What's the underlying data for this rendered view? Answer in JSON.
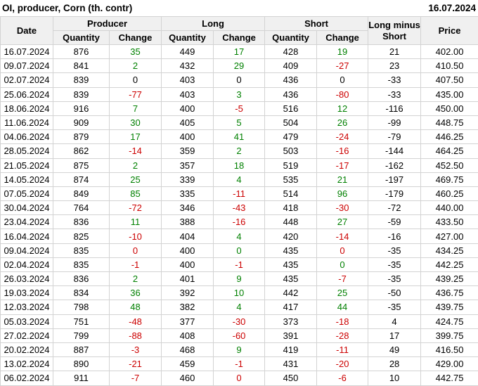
{
  "header": {
    "title": "OI, producer, Corn (th. contr)",
    "report_date": "16.07.2024"
  },
  "colors": {
    "positive": "#008000",
    "negative": "#cc0000",
    "neutral": "#000000",
    "header_bg": "#f0f0f0",
    "border": "#d3d3d3"
  },
  "table": {
    "group_headers": {
      "date": "Date",
      "producer": "Producer",
      "long": "Long",
      "short": "Short",
      "long_minus_short": "Long minus Short",
      "price": "Price"
    },
    "sub_headers": {
      "quantity": "Quantity",
      "change": "Change"
    },
    "rows": [
      {
        "date": "16.07.2024",
        "producer_qty": "876",
        "producer_chg": "35",
        "producer_chg_color": "positive",
        "long_qty": "449",
        "long_chg": "17",
        "long_chg_color": "positive",
        "short_qty": "428",
        "short_chg": "19",
        "short_chg_color": "positive",
        "long_minus_short": "21",
        "price": "402.00"
      },
      {
        "date": "09.07.2024",
        "producer_qty": "841",
        "producer_chg": "2",
        "producer_chg_color": "positive",
        "long_qty": "432",
        "long_chg": "29",
        "long_chg_color": "positive",
        "short_qty": "409",
        "short_chg": "-27",
        "short_chg_color": "negative",
        "long_minus_short": "23",
        "price": "410.50"
      },
      {
        "date": "02.07.2024",
        "producer_qty": "839",
        "producer_chg": "0",
        "producer_chg_color": "neutral",
        "long_qty": "403",
        "long_chg": "0",
        "long_chg_color": "neutral",
        "short_qty": "436",
        "short_chg": "0",
        "short_chg_color": "neutral",
        "long_minus_short": "-33",
        "price": "407.50"
      },
      {
        "date": "25.06.2024",
        "producer_qty": "839",
        "producer_chg": "-77",
        "producer_chg_color": "negative",
        "long_qty": "403",
        "long_chg": "3",
        "long_chg_color": "positive",
        "short_qty": "436",
        "short_chg": "-80",
        "short_chg_color": "negative",
        "long_minus_short": "-33",
        "price": "435.00"
      },
      {
        "date": "18.06.2024",
        "producer_qty": "916",
        "producer_chg": "7",
        "producer_chg_color": "positive",
        "long_qty": "400",
        "long_chg": "-5",
        "long_chg_color": "negative",
        "short_qty": "516",
        "short_chg": "12",
        "short_chg_color": "positive",
        "long_minus_short": "-116",
        "price": "450.00"
      },
      {
        "date": "11.06.2024",
        "producer_qty": "909",
        "producer_chg": "30",
        "producer_chg_color": "positive",
        "long_qty": "405",
        "long_chg": "5",
        "long_chg_color": "positive",
        "short_qty": "504",
        "short_chg": "26",
        "short_chg_color": "positive",
        "long_minus_short": "-99",
        "price": "448.75"
      },
      {
        "date": "04.06.2024",
        "producer_qty": "879",
        "producer_chg": "17",
        "producer_chg_color": "positive",
        "long_qty": "400",
        "long_chg": "41",
        "long_chg_color": "positive",
        "short_qty": "479",
        "short_chg": "-24",
        "short_chg_color": "negative",
        "long_minus_short": "-79",
        "price": "446.25"
      },
      {
        "date": "28.05.2024",
        "producer_qty": "862",
        "producer_chg": "-14",
        "producer_chg_color": "negative",
        "long_qty": "359",
        "long_chg": "2",
        "long_chg_color": "positive",
        "short_qty": "503",
        "short_chg": "-16",
        "short_chg_color": "negative",
        "long_minus_short": "-144",
        "price": "464.25"
      },
      {
        "date": "21.05.2024",
        "producer_qty": "875",
        "producer_chg": "2",
        "producer_chg_color": "positive",
        "long_qty": "357",
        "long_chg": "18",
        "long_chg_color": "positive",
        "short_qty": "519",
        "short_chg": "-17",
        "short_chg_color": "negative",
        "long_minus_short": "-162",
        "price": "452.50"
      },
      {
        "date": "14.05.2024",
        "producer_qty": "874",
        "producer_chg": "25",
        "producer_chg_color": "positive",
        "long_qty": "339",
        "long_chg": "4",
        "long_chg_color": "positive",
        "short_qty": "535",
        "short_chg": "21",
        "short_chg_color": "positive",
        "long_minus_short": "-197",
        "price": "469.75"
      },
      {
        "date": "07.05.2024",
        "producer_qty": "849",
        "producer_chg": "85",
        "producer_chg_color": "positive",
        "long_qty": "335",
        "long_chg": "-11",
        "long_chg_color": "negative",
        "short_qty": "514",
        "short_chg": "96",
        "short_chg_color": "positive",
        "long_minus_short": "-179",
        "price": "460.25"
      },
      {
        "date": "30.04.2024",
        "producer_qty": "764",
        "producer_chg": "-72",
        "producer_chg_color": "negative",
        "long_qty": "346",
        "long_chg": "-43",
        "long_chg_color": "negative",
        "short_qty": "418",
        "short_chg": "-30",
        "short_chg_color": "negative",
        "long_minus_short": "-72",
        "price": "440.00"
      },
      {
        "date": "23.04.2024",
        "producer_qty": "836",
        "producer_chg": "11",
        "producer_chg_color": "positive",
        "long_qty": "388",
        "long_chg": "-16",
        "long_chg_color": "negative",
        "short_qty": "448",
        "short_chg": "27",
        "short_chg_color": "positive",
        "long_minus_short": "-59",
        "price": "433.50"
      },
      {
        "date": "16.04.2024",
        "producer_qty": "825",
        "producer_chg": "-10",
        "producer_chg_color": "negative",
        "long_qty": "404",
        "long_chg": "4",
        "long_chg_color": "positive",
        "short_qty": "420",
        "short_chg": "-14",
        "short_chg_color": "negative",
        "long_minus_short": "-16",
        "price": "427.00"
      },
      {
        "date": "09.04.2024",
        "producer_qty": "835",
        "producer_chg": "0",
        "producer_chg_color": "negative",
        "long_qty": "400",
        "long_chg": "0",
        "long_chg_color": "positive",
        "short_qty": "435",
        "short_chg": "0",
        "short_chg_color": "negative",
        "long_minus_short": "-35",
        "price": "434.25"
      },
      {
        "date": "02.04.2024",
        "producer_qty": "835",
        "producer_chg": "-1",
        "producer_chg_color": "negative",
        "long_qty": "400",
        "long_chg": "-1",
        "long_chg_color": "negative",
        "short_qty": "435",
        "short_chg": "0",
        "short_chg_color": "positive",
        "long_minus_short": "-35",
        "price": "442.25"
      },
      {
        "date": "26.03.2024",
        "producer_qty": "836",
        "producer_chg": "2",
        "producer_chg_color": "positive",
        "long_qty": "401",
        "long_chg": "9",
        "long_chg_color": "positive",
        "short_qty": "435",
        "short_chg": "-7",
        "short_chg_color": "negative",
        "long_minus_short": "-35",
        "price": "439.25"
      },
      {
        "date": "19.03.2024",
        "producer_qty": "834",
        "producer_chg": "36",
        "producer_chg_color": "positive",
        "long_qty": "392",
        "long_chg": "10",
        "long_chg_color": "positive",
        "short_qty": "442",
        "short_chg": "25",
        "short_chg_color": "positive",
        "long_minus_short": "-50",
        "price": "436.75"
      },
      {
        "date": "12.03.2024",
        "producer_qty": "798",
        "producer_chg": "48",
        "producer_chg_color": "positive",
        "long_qty": "382",
        "long_chg": "4",
        "long_chg_color": "positive",
        "short_qty": "417",
        "short_chg": "44",
        "short_chg_color": "positive",
        "long_minus_short": "-35",
        "price": "439.75"
      },
      {
        "date": "05.03.2024",
        "producer_qty": "751",
        "producer_chg": "-48",
        "producer_chg_color": "negative",
        "long_qty": "377",
        "long_chg": "-30",
        "long_chg_color": "negative",
        "short_qty": "373",
        "short_chg": "-18",
        "short_chg_color": "negative",
        "long_minus_short": "4",
        "price": "424.75"
      },
      {
        "date": "27.02.2024",
        "producer_qty": "799",
        "producer_chg": "-88",
        "producer_chg_color": "negative",
        "long_qty": "408",
        "long_chg": "-60",
        "long_chg_color": "negative",
        "short_qty": "391",
        "short_chg": "-28",
        "short_chg_color": "negative",
        "long_minus_short": "17",
        "price": "399.75"
      },
      {
        "date": "20.02.2024",
        "producer_qty": "887",
        "producer_chg": "-3",
        "producer_chg_color": "negative",
        "long_qty": "468",
        "long_chg": "9",
        "long_chg_color": "positive",
        "short_qty": "419",
        "short_chg": "-11",
        "short_chg_color": "negative",
        "long_minus_short": "49",
        "price": "416.50"
      },
      {
        "date": "13.02.2024",
        "producer_qty": "890",
        "producer_chg": "-21",
        "producer_chg_color": "negative",
        "long_qty": "459",
        "long_chg": "-1",
        "long_chg_color": "negative",
        "short_qty": "431",
        "short_chg": "-20",
        "short_chg_color": "negative",
        "long_minus_short": "28",
        "price": "429.00"
      },
      {
        "date": "06.02.2024",
        "producer_qty": "911",
        "producer_chg": "-7",
        "producer_chg_color": "negative",
        "long_qty": "460",
        "long_chg": "0",
        "long_chg_color": "negative",
        "short_qty": "450",
        "short_chg": "-6",
        "short_chg_color": "negative",
        "long_minus_short": "10",
        "price": "442.75"
      }
    ]
  }
}
